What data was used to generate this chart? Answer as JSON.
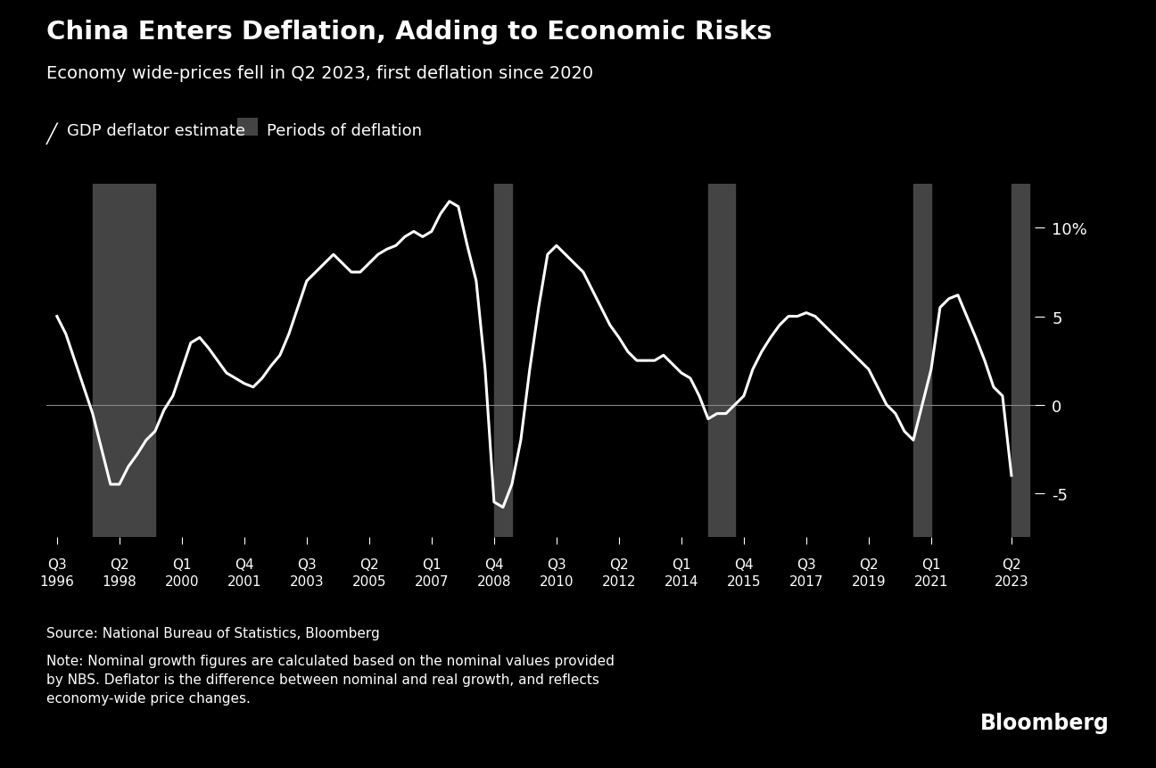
{
  "title": "China Enters Deflation, Adding to Economic Risks",
  "subtitle": "Economy wide-prices fell in Q2 2023, first deflation since 2020",
  "legend_line": "GDP deflator estimate",
  "legend_rect": "Periods of deflation",
  "source": "Source: National Bureau of Statistics, Bloomberg",
  "note": "Note: Nominal growth figures are calculated based on the nominal values provided\nby NBS. Deflator is the difference between nominal and real growth, and reflects\neconomy-wide price changes.",
  "bloomberg": "Bloomberg",
  "bg_color": "#000000",
  "line_color": "#ffffff",
  "zero_line_color": "#888888",
  "deflation_rect_color": "#444444",
  "ytick_labels": [
    "10%",
    "5",
    "0",
    "-5"
  ],
  "ytick_values": [
    10,
    5,
    0,
    -5
  ],
  "ylim": [
    -7.5,
    12.5
  ],
  "deflation_periods": [
    {
      "start": 1997.5,
      "end": 1999.25
    },
    {
      "start": 2008.75,
      "end": 2009.25
    },
    {
      "start": 2014.75,
      "end": 2015.5
    },
    {
      "start": 2020.5,
      "end": 2021.0
    },
    {
      "start": 2023.25,
      "end": 2023.75
    }
  ],
  "x_ticks_quarter": [
    "Q3",
    "Q2",
    "Q1",
    "Q4",
    "Q3",
    "Q2",
    "Q1",
    "Q4",
    "Q3",
    "Q2",
    "Q1",
    "Q4",
    "Q3",
    "Q2",
    "Q1",
    "Q2"
  ],
  "x_ticks_year": [
    "1996",
    "1998",
    "2000",
    "2001",
    "2003",
    "2005",
    "2007",
    "2008",
    "2010",
    "2012",
    "2014",
    "2015",
    "2017",
    "2019",
    "2021",
    "2023"
  ],
  "x_ticks_pos": [
    1996.5,
    1998.25,
    2000.0,
    2001.75,
    2003.5,
    2005.25,
    2007.0,
    2008.75,
    2010.5,
    2012.25,
    2014.0,
    2015.75,
    2017.5,
    2019.25,
    2021.0,
    2023.25
  ],
  "xlim": [
    1996.2,
    2023.9
  ],
  "series_x": [
    1996.5,
    1996.75,
    1997.0,
    1997.25,
    1997.5,
    1997.75,
    1998.0,
    1998.25,
    1998.5,
    1998.75,
    1999.0,
    1999.25,
    1999.5,
    1999.75,
    2000.0,
    2000.25,
    2000.5,
    2000.75,
    2001.0,
    2001.25,
    2001.5,
    2001.75,
    2002.0,
    2002.25,
    2002.5,
    2002.75,
    2003.0,
    2003.25,
    2003.5,
    2003.75,
    2004.0,
    2004.25,
    2004.5,
    2004.75,
    2005.0,
    2005.25,
    2005.5,
    2005.75,
    2006.0,
    2006.25,
    2006.5,
    2006.75,
    2007.0,
    2007.25,
    2007.5,
    2007.75,
    2008.0,
    2008.25,
    2008.5,
    2008.75,
    2009.0,
    2009.25,
    2009.5,
    2009.75,
    2010.0,
    2010.25,
    2010.5,
    2010.75,
    2011.0,
    2011.25,
    2011.5,
    2011.75,
    2012.0,
    2012.25,
    2012.5,
    2012.75,
    2013.0,
    2013.25,
    2013.5,
    2013.75,
    2014.0,
    2014.25,
    2014.5,
    2014.75,
    2015.0,
    2015.25,
    2015.5,
    2015.75,
    2016.0,
    2016.25,
    2016.5,
    2016.75,
    2017.0,
    2017.25,
    2017.5,
    2017.75,
    2018.0,
    2018.25,
    2018.5,
    2018.75,
    2019.0,
    2019.25,
    2019.5,
    2019.75,
    2020.0,
    2020.25,
    2020.5,
    2020.75,
    2021.0,
    2021.25,
    2021.5,
    2021.75,
    2022.0,
    2022.25,
    2022.5,
    2022.75,
    2023.0,
    2023.25
  ],
  "series_y": [
    5.0,
    4.0,
    2.5,
    1.0,
    -0.5,
    -2.5,
    -4.5,
    -4.5,
    -3.5,
    -2.8,
    -2.0,
    -1.5,
    -0.3,
    0.5,
    2.0,
    3.5,
    3.8,
    3.2,
    2.5,
    1.8,
    1.5,
    1.2,
    1.0,
    1.5,
    2.2,
    2.8,
    4.0,
    5.5,
    7.0,
    7.5,
    8.0,
    8.5,
    8.0,
    7.5,
    7.5,
    8.0,
    8.5,
    8.8,
    9.0,
    9.5,
    9.8,
    9.5,
    9.8,
    10.8,
    11.5,
    11.2,
    9.0,
    7.0,
    2.0,
    -5.5,
    -5.8,
    -4.5,
    -2.0,
    2.0,
    5.5,
    8.5,
    9.0,
    8.5,
    8.0,
    7.5,
    6.5,
    5.5,
    4.5,
    3.8,
    3.0,
    2.5,
    2.5,
    2.5,
    2.8,
    2.3,
    1.8,
    1.5,
    0.5,
    -0.8,
    -0.5,
    -0.5,
    0.0,
    0.5,
    2.0,
    3.0,
    3.8,
    4.5,
    5.0,
    5.0,
    5.2,
    5.0,
    4.5,
    4.0,
    3.5,
    3.0,
    2.5,
    2.0,
    1.0,
    0.0,
    -0.5,
    -1.5,
    -2.0,
    0.0,
    2.0,
    5.5,
    6.0,
    6.2,
    5.0,
    3.8,
    2.5,
    1.0,
    0.5,
    -4.0
  ]
}
